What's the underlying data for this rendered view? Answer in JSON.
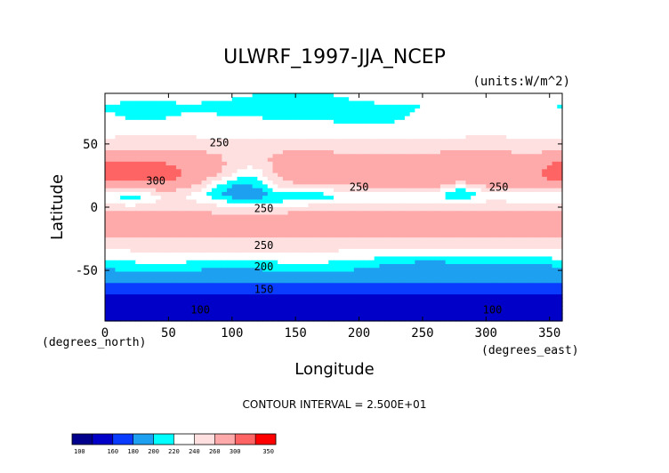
{
  "chart_data": {
    "type": "heatmap",
    "title": "ULWRF_1997-JJA_NCEP",
    "units_label": "(units:W/m^2)",
    "xlabel": "Longitude",
    "ylabel": "Latitude",
    "x_unit_label": "(degrees_east)",
    "y_unit_label": "(degrees_north)",
    "xlim": [
      0,
      360
    ],
    "ylim": [
      -90,
      90
    ],
    "x_ticks": [
      0,
      50,
      100,
      150,
      200,
      250,
      300,
      350
    ],
    "y_ticks": [
      -50,
      0,
      50
    ],
    "contour_interval_text": "CONTOUR INTERVAL = 2.500E+01",
    "contour_labels": [
      {
        "text": "250",
        "lon": 90,
        "lat": 48
      },
      {
        "text": "300",
        "lon": 40,
        "lat": 18
      },
      {
        "text": "250",
        "lon": 200,
        "lat": 13
      },
      {
        "text": "250",
        "lon": 310,
        "lat": 13
      },
      {
        "text": "250",
        "lon": 125,
        "lat": -4
      },
      {
        "text": "250",
        "lon": 125,
        "lat": -33
      },
      {
        "text": "200",
        "lon": 125,
        "lat": -50
      },
      {
        "text": "150",
        "lon": 125,
        "lat": -68
      },
      {
        "text": "100",
        "lon": 75,
        "lat": -84
      },
      {
        "text": "100",
        "lon": 305,
        "lat": -84
      }
    ],
    "colorbar": {
      "levels": [
        "100",
        "160",
        "180",
        "200",
        "220",
        "240",
        "260",
        "300",
        "350"
      ],
      "colors": [
        "#00008c",
        "#0000c8",
        "#0a3cff",
        "#1ea0f0",
        "#00ffff",
        "#ffffff",
        "#ffe0e0",
        "#ffaaaa",
        "#ff6464",
        "#ff0000"
      ]
    },
    "fields": {
      "lat_profile": [
        {
          "lat": 90,
          "value": 232
        },
        {
          "lat": 80,
          "value": 222
        },
        {
          "lat": 70,
          "value": 228
        },
        {
          "lat": 60,
          "value": 236
        },
        {
          "lat": 50,
          "value": 244
        },
        {
          "lat": 45,
          "value": 255
        },
        {
          "lat": 35,
          "value": 265
        },
        {
          "lat": 25,
          "value": 272
        },
        {
          "lat": 18,
          "value": 262
        },
        {
          "lat": 10,
          "value": 238
        },
        {
          "lat": 5,
          "value": 242
        },
        {
          "lat": 0,
          "value": 255
        },
        {
          "lat": -10,
          "value": 270
        },
        {
          "lat": -20,
          "value": 268
        },
        {
          "lat": -28,
          "value": 255
        },
        {
          "lat": -35,
          "value": 240
        },
        {
          "lat": -42,
          "value": 228
        },
        {
          "lat": -48,
          "value": 210
        },
        {
          "lat": -55,
          "value": 195
        },
        {
          "lat": -62,
          "value": 175
        },
        {
          "lat": -70,
          "value": 158
        },
        {
          "lat": -80,
          "value": 145
        },
        {
          "lat": -90,
          "value": 140
        }
      ],
      "regional_anomalies": [
        {
          "lon": 40,
          "lat": 28,
          "dlon": 25,
          "dlat": 10,
          "amp": 45
        },
        {
          "lon": 10,
          "lat": 28,
          "dlon": 12,
          "dlat": 8,
          "amp": 30
        },
        {
          "lon": 355,
          "lat": 28,
          "dlon": 10,
          "dlat": 6,
          "amp": 35
        },
        {
          "lon": 235,
          "lat": 25,
          "dlon": 22,
          "dlat": 8,
          "amp": 25
        },
        {
          "lon": 155,
          "lat": 35,
          "dlon": 20,
          "dlat": 7,
          "amp": 15
        },
        {
          "lon": 295,
          "lat": 30,
          "dlon": 25,
          "dlat": 10,
          "amp": 15
        },
        {
          "lon": 115,
          "lat": 20,
          "dlon": 14,
          "dlat": 12,
          "amp": -45
        },
        {
          "lon": 95,
          "lat": 15,
          "dlon": 15,
          "dlat": 8,
          "amp": -35
        },
        {
          "lon": 20,
          "lat": 8,
          "dlon": 12,
          "dlat": 5,
          "amp": -30
        },
        {
          "lon": 150,
          "lat": 8,
          "dlon": 25,
          "dlat": 5,
          "amp": -25
        },
        {
          "lon": 280,
          "lat": 12,
          "dlon": 10,
          "dlat": 6,
          "amp": -35
        },
        {
          "lon": 220,
          "lat": 8,
          "dlon": 40,
          "dlat": 4,
          "amp": -12
        },
        {
          "lon": 340,
          "lat": 5,
          "dlon": 15,
          "dlat": 4,
          "amp": -10
        },
        {
          "lon": 255,
          "lat": -45,
          "dlon": 40,
          "dlat": 6,
          "amp": -25
        },
        {
          "lon": 340,
          "lat": -45,
          "dlon": 25,
          "dlat": 6,
          "amp": -15
        },
        {
          "lon": 100,
          "lat": -48,
          "dlon": 30,
          "dlat": 5,
          "amp": -10
        },
        {
          "lon": 30,
          "lat": 75,
          "dlon": 20,
          "dlat": 7,
          "amp": -12
        },
        {
          "lon": 135,
          "lat": 78,
          "dlon": 40,
          "dlat": 7,
          "amp": -14
        },
        {
          "lon": 210,
          "lat": 68,
          "dlon": 30,
          "dlat": 8,
          "amp": -12
        },
        {
          "lon": 150,
          "lat": 88,
          "dlon": 30,
          "dlat": 4,
          "amp": -12
        }
      ]
    }
  }
}
